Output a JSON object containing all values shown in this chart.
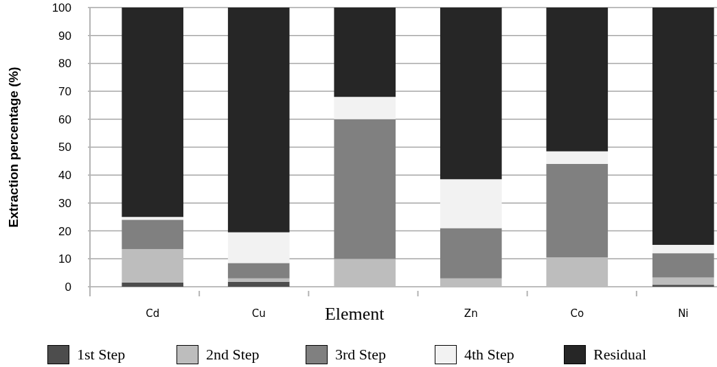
{
  "chart_data": {
    "type": "bar",
    "stacked": true,
    "xlabel": "Element",
    "ylabel": "Extraction percentage (%)",
    "categories": [
      "Cd",
      "Cu",
      null,
      "Zn",
      "Co",
      "Ni"
    ],
    "series": [
      {
        "name": "1st Step",
        "color": "#4d4d4d",
        "values": [
          1.5,
          1.8,
          0,
          0,
          0,
          0.7
        ]
      },
      {
        "name": "2nd Step",
        "color": "#bdbdbd",
        "values": [
          12,
          1.2,
          10,
          3,
          10.5,
          2.6
        ]
      },
      {
        "name": "3rd Step",
        "color": "#808080",
        "values": [
          10.5,
          5.5,
          50,
          18,
          33.5,
          8.7
        ]
      },
      {
        "name": "4th Step",
        "color": "#f2f2f2",
        "values": [
          1,
          11,
          8,
          17.5,
          4.5,
          3
        ]
      },
      {
        "name": "Residual",
        "color": "#262626",
        "values": [
          75,
          80.5,
          32,
          61.5,
          51.5,
          85
        ]
      }
    ],
    "ylim": [
      0,
      100
    ],
    "yticks": [
      0,
      10,
      20,
      30,
      40,
      50,
      60,
      70,
      80,
      90,
      100
    ],
    "grid": "y",
    "legend": "bottom"
  }
}
